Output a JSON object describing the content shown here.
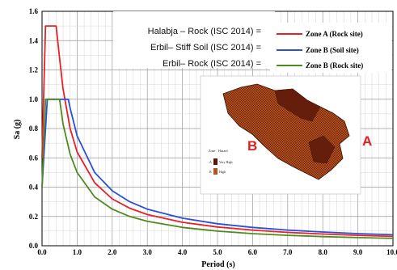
{
  "chart_data": {
    "type": "line",
    "xlabel": "Period  (s)",
    "ylabel": "Sa (g)",
    "xlim": [
      0,
      10
    ],
    "ylim": [
      0,
      1.6
    ],
    "x_ticks": [
      "0.0",
      "1.0",
      "2.0",
      "3.0",
      "4.0",
      "5.0",
      "6.0",
      "7.0",
      "8.0",
      "9.0",
      "10.0"
    ],
    "y_ticks": [
      "0.0",
      "0.2",
      "0.4",
      "0.6",
      "0.8",
      "1.0",
      "1.2",
      "1.4",
      "1.6"
    ],
    "grid": true,
    "legend_position": "top-right",
    "series": [
      {
        "name": "Zone A (Rock site)",
        "color": "#e8202a",
        "points": [
          [
            0,
            0.6
          ],
          [
            0.1,
            1.5
          ],
          [
            0.2,
            1.5
          ],
          [
            0.3,
            1.5
          ],
          [
            0.4,
            1.5
          ],
          [
            0.5,
            1.28
          ],
          [
            0.6,
            1.07
          ],
          [
            0.8,
            0.8
          ],
          [
            1.0,
            0.64
          ],
          [
            1.5,
            0.43
          ],
          [
            2.0,
            0.32
          ],
          [
            2.5,
            0.256
          ],
          [
            3.0,
            0.213
          ],
          [
            4.0,
            0.16
          ],
          [
            5.0,
            0.128
          ],
          [
            6.0,
            0.107
          ],
          [
            7.0,
            0.091
          ],
          [
            8.0,
            0.08
          ],
          [
            9.0,
            0.071
          ],
          [
            10.0,
            0.064
          ]
        ]
      },
      {
        "name": "Zone B (Soil site)",
        "color": "#2a4fd8",
        "points": [
          [
            0,
            0.4
          ],
          [
            0.15,
            1.0
          ],
          [
            0.3,
            1.0
          ],
          [
            0.5,
            1.0
          ],
          [
            0.75,
            1.0
          ],
          [
            0.8,
            0.94
          ],
          [
            1.0,
            0.75
          ],
          [
            1.5,
            0.5
          ],
          [
            2.0,
            0.375
          ],
          [
            2.5,
            0.3
          ],
          [
            3.0,
            0.25
          ],
          [
            4.0,
            0.188
          ],
          [
            5.0,
            0.15
          ],
          [
            6.0,
            0.125
          ],
          [
            7.0,
            0.107
          ],
          [
            8.0,
            0.094
          ],
          [
            9.0,
            0.083
          ],
          [
            10.0,
            0.075
          ]
        ]
      },
      {
        "name": "Zone B (Rock site)",
        "color": "#4f8a1e",
        "points": [
          [
            0,
            0.4
          ],
          [
            0.1,
            1.0
          ],
          [
            0.3,
            1.0
          ],
          [
            0.5,
            1.0
          ],
          [
            0.6,
            0.83
          ],
          [
            0.8,
            0.625
          ],
          [
            1.0,
            0.5
          ],
          [
            1.5,
            0.333
          ],
          [
            2.0,
            0.25
          ],
          [
            2.5,
            0.2
          ],
          [
            3.0,
            0.167
          ],
          [
            4.0,
            0.125
          ],
          [
            5.0,
            0.1
          ],
          [
            6.0,
            0.083
          ],
          [
            7.0,
            0.071
          ],
          [
            8.0,
            0.0625
          ],
          [
            9.0,
            0.056
          ],
          [
            10.0,
            0.05
          ]
        ]
      }
    ]
  },
  "annotations": [
    "Halabja – Rock (ISC 2014) =",
    "Erbil– Stiff Soil (ISC 2014) =",
    "Erbil– Rock       (ISC 2014) ="
  ],
  "map_inset": {
    "label_a": "A",
    "label_b": "B",
    "legend_header": [
      "Zone",
      "Hazard"
    ],
    "legend_rows": [
      {
        "zone": "A",
        "hazard": "Very High",
        "color": "#5a1a0a"
      },
      {
        "zone": "B",
        "hazard": "High",
        "color": "#b8521c"
      }
    ]
  }
}
